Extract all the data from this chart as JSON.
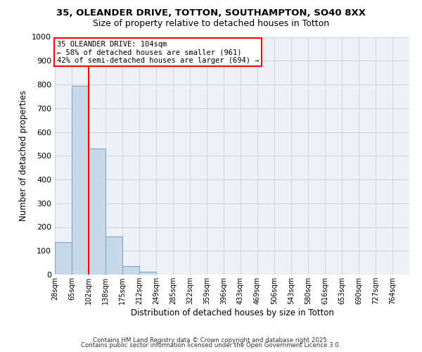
{
  "title_line1": "35, OLEANDER DRIVE, TOTTON, SOUTHAMPTON, SO40 8XX",
  "title_line2": "Size of property relative to detached houses in Totton",
  "xlabel": "Distribution of detached houses by size in Totton",
  "ylabel": "Number of detached properties",
  "bin_edges": [
    28,
    65,
    102,
    139,
    176,
    213,
    250,
    287,
    324,
    361,
    398,
    435,
    472,
    509,
    546,
    583,
    620,
    657,
    694,
    731,
    768
  ],
  "bin_labels": [
    "28sqm",
    "65sqm",
    "102sqm",
    "138sqm",
    "175sqm",
    "212sqm",
    "249sqm",
    "285sqm",
    "322sqm",
    "359sqm",
    "396sqm",
    "433sqm",
    "469sqm",
    "506sqm",
    "543sqm",
    "580sqm",
    "616sqm",
    "653sqm",
    "690sqm",
    "727sqm",
    "764sqm"
  ],
  "counts": [
    135,
    795,
    530,
    160,
    37,
    12,
    0,
    0,
    0,
    0,
    0,
    0,
    0,
    0,
    0,
    0,
    0,
    0,
    0,
    0
  ],
  "bar_color": "#c8d8e8",
  "bar_edge_color": "#7ba8c8",
  "red_line_x": 102,
  "ylim": [
    0,
    1000
  ],
  "yticks": [
    0,
    100,
    200,
    300,
    400,
    500,
    600,
    700,
    800,
    900,
    1000
  ],
  "annotation_title": "35 OLEANDER DRIVE: 104sqm",
  "annotation_line1": "← 58% of detached houses are smaller (961)",
  "annotation_line2": "42% of semi-detached houses are larger (694) →",
  "footer_line1": "Contains HM Land Registry data © Crown copyright and database right 2025.",
  "footer_line2": "Contains public sector information licensed under the Open Government Licence 3.0.",
  "fig_bg_color": "#ffffff",
  "ax_bg_color": "#eef2f7",
  "grid_color": "#c8d0dc",
  "title1_fontsize": 9.5,
  "title2_fontsize": 9,
  "annot_fontsize": 7.5,
  "footer_fontsize": 6.2
}
